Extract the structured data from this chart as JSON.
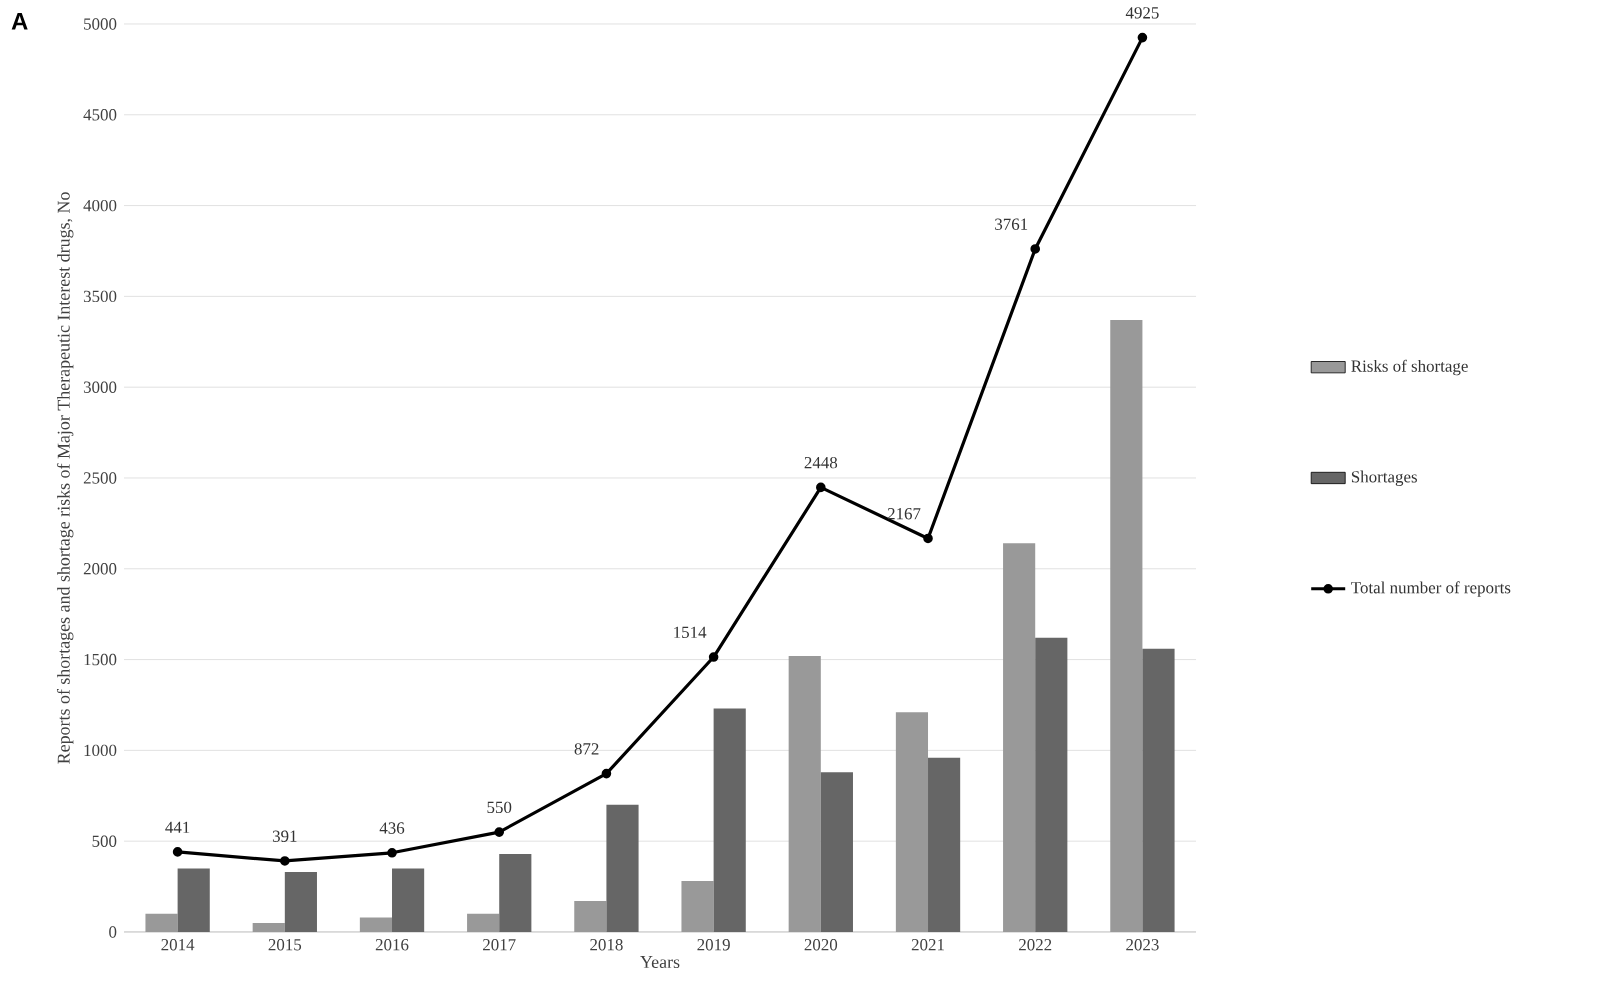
{
  "chart_data": {
    "type": "bar",
    "xlabel": "Years",
    "ylabel": "Reports of shortages and shortage risks of Major Therapeutic Interest drugs, No",
    "annotations": [
      "A"
    ],
    "categories": [
      "2014",
      "2015",
      "2016",
      "2017",
      "2018",
      "2019",
      "2020",
      "2021",
      "2022",
      "2023"
    ],
    "series": [
      {
        "name": "Risks of shortage",
        "color": "#999999",
        "values": [
          100,
          50,
          80,
          100,
          170,
          280,
          1520,
          1210,
          2140,
          3370
        ]
      },
      {
        "name": "Shortages",
        "color": "#666666",
        "values": [
          350,
          330,
          350,
          430,
          700,
          1230,
          880,
          960,
          1620,
          1560
        ]
      },
      {
        "name": "Total number of reports",
        "type": "line",
        "color": "#000000",
        "marker": "circle",
        "line_style": "solid",
        "values": [
          441,
          391,
          436,
          550,
          872,
          1514,
          2448,
          2167,
          3761,
          4925
        ],
        "value_labels": [
          "441",
          "391",
          "436",
          "550",
          "872",
          "1514",
          "2448",
          "2167",
          "3761",
          "4925"
        ]
      }
    ],
    "ylim": [
      0,
      5000
    ],
    "yticks": [
      0,
      500,
      1000,
      1500,
      2000,
      2500,
      3000,
      3500,
      4000,
      4500,
      5000
    ],
    "grid": "y",
    "legend": "right"
  }
}
